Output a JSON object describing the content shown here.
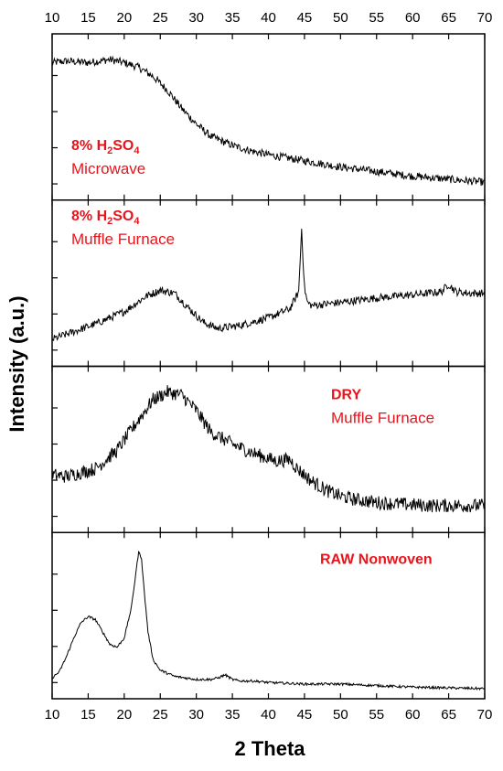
{
  "chart_data": {
    "type": "line",
    "xlabel": "2 Theta",
    "ylabel": "Intensity (a.u.)",
    "xlim": [
      10,
      70
    ],
    "xticks": [
      10,
      15,
      20,
      25,
      30,
      35,
      40,
      45,
      50,
      55,
      60,
      65,
      70
    ],
    "grid": false,
    "colors": {
      "line": "#000000",
      "annotation": "#e8141b"
    },
    "panels": [
      {
        "name": "Microwave",
        "label_bold": "8% H2SO4",
        "label_bold_parts": [
          "8% H",
          "2",
          "SO",
          "4"
        ],
        "label_regular": "Microwave",
        "label_position": "left",
        "noise": 0.025,
        "x": [
          10,
          12,
          15,
          18,
          20,
          22,
          24,
          26,
          28,
          30,
          32,
          35,
          38,
          40,
          45,
          50,
          55,
          60,
          65,
          70
        ],
        "y": [
          0.86,
          0.87,
          0.86,
          0.88,
          0.86,
          0.83,
          0.77,
          0.68,
          0.56,
          0.46,
          0.38,
          0.32,
          0.28,
          0.26,
          0.22,
          0.18,
          0.15,
          0.12,
          0.1,
          0.08
        ]
      },
      {
        "name": "Muffle Furnace (acid)",
        "label_bold": "8% H2SO4",
        "label_bold_parts": [
          "8% H",
          "2",
          "SO",
          "4"
        ],
        "label_regular": "Muffle Furnace",
        "label_position": "left",
        "noise": 0.025,
        "x": [
          10,
          13,
          16,
          20,
          23,
          25,
          27,
          29,
          31,
          33,
          36,
          40,
          43,
          44.2,
          44.6,
          45.0,
          45.4,
          46,
          50,
          55,
          60,
          64,
          65,
          66,
          68,
          70
        ],
        "y": [
          0.14,
          0.19,
          0.24,
          0.32,
          0.42,
          0.46,
          0.44,
          0.34,
          0.25,
          0.21,
          0.23,
          0.28,
          0.34,
          0.45,
          0.86,
          0.48,
          0.38,
          0.36,
          0.38,
          0.41,
          0.43,
          0.45,
          0.5,
          0.45,
          0.44,
          0.44
        ]
      },
      {
        "name": "DRY Muffle Furnace",
        "label_bold": "DRY",
        "label_bold_parts": [
          "DRY"
        ],
        "label_regular": "Muffle Furnace",
        "label_position": "right",
        "noise": 0.045,
        "x": [
          10,
          12,
          16,
          19,
          22,
          24,
          26,
          28,
          30,
          32,
          35,
          38,
          41,
          43,
          44,
          46,
          48,
          50,
          52,
          55,
          58,
          62,
          66,
          70
        ],
        "y": [
          0.34,
          0.33,
          0.38,
          0.5,
          0.7,
          0.83,
          0.88,
          0.86,
          0.76,
          0.62,
          0.54,
          0.48,
          0.43,
          0.44,
          0.38,
          0.3,
          0.24,
          0.2,
          0.18,
          0.16,
          0.15,
          0.14,
          0.14,
          0.14
        ]
      },
      {
        "name": "RAW Nonwoven",
        "label_bold": "RAW Nonwoven",
        "label_bold_parts": [
          "RAW Nonwoven"
        ],
        "label_regular": "",
        "label_position": "right",
        "noise": 0.008,
        "x": [
          10,
          11,
          12,
          13,
          14,
          15,
          16,
          17,
          18,
          19,
          20,
          21,
          21.6,
          22.0,
          22.4,
          22.8,
          23.3,
          24,
          25,
          27,
          30,
          32,
          33,
          34,
          35,
          36,
          38,
          40,
          45,
          50,
          55,
          60,
          65,
          70
        ],
        "y": [
          0.1,
          0.14,
          0.24,
          0.36,
          0.46,
          0.5,
          0.48,
          0.4,
          0.32,
          0.3,
          0.36,
          0.56,
          0.78,
          0.92,
          0.88,
          0.65,
          0.4,
          0.22,
          0.15,
          0.11,
          0.09,
          0.09,
          0.1,
          0.12,
          0.09,
          0.08,
          0.08,
          0.07,
          0.06,
          0.06,
          0.05,
          0.04,
          0.035,
          0.03
        ]
      }
    ]
  }
}
